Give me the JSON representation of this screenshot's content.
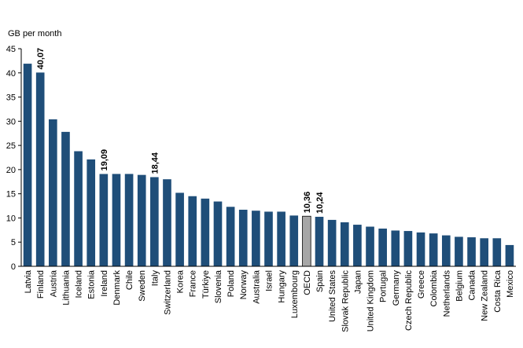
{
  "chart_data": {
    "type": "bar",
    "ylabel": "GB per month",
    "ylim": [
      0,
      45
    ],
    "yticks": [
      0,
      5,
      10,
      15,
      20,
      25,
      30,
      35,
      40,
      45
    ],
    "grid": false,
    "categories": [
      "Latvia",
      "Finland",
      "Austria",
      "Lithuania",
      "Iceland",
      "Estonia",
      "Ireland",
      "Denmark",
      "Chile",
      "Sweden",
      "Italy",
      "Switzerland",
      "Korea",
      "France",
      "Türkiye",
      "Slovenia",
      "Poland",
      "Norway",
      "Australia",
      "Israel",
      "Hungary",
      "Luxembourg",
      "OECD",
      "Spain",
      "United States",
      "Slovak Republic",
      "Japan",
      "United Kingdom",
      "Portugal",
      "Germany",
      "Czech Republic",
      "Greece",
      "Colombia",
      "Netherlands",
      "Belgium",
      "Canada",
      "New Zealand",
      "Costa Rica",
      "Mexico"
    ],
    "values": [
      41.9,
      40.07,
      30.4,
      27.8,
      23.8,
      22.1,
      19.09,
      19.1,
      19.1,
      18.9,
      18.44,
      18.0,
      15.2,
      14.5,
      14.0,
      13.4,
      12.3,
      11.7,
      11.5,
      11.3,
      11.3,
      10.5,
      10.36,
      10.24,
      9.6,
      9.1,
      8.6,
      8.2,
      7.8,
      7.4,
      7.3,
      7.0,
      6.8,
      6.4,
      6.1,
      6.0,
      5.8,
      5.8,
      4.4
    ],
    "data_labels": [
      {
        "index": 1,
        "text": "40,07"
      },
      {
        "index": 6,
        "text": "19,09"
      },
      {
        "index": 10,
        "text": "18,44"
      },
      {
        "index": 22,
        "text": "10,36"
      },
      {
        "index": 23,
        "text": "10,24"
      }
    ],
    "highlight_index": 22,
    "colors": {
      "bar": "#1f4e79",
      "highlight": "#a6a6a6",
      "axis": "#000000"
    }
  }
}
